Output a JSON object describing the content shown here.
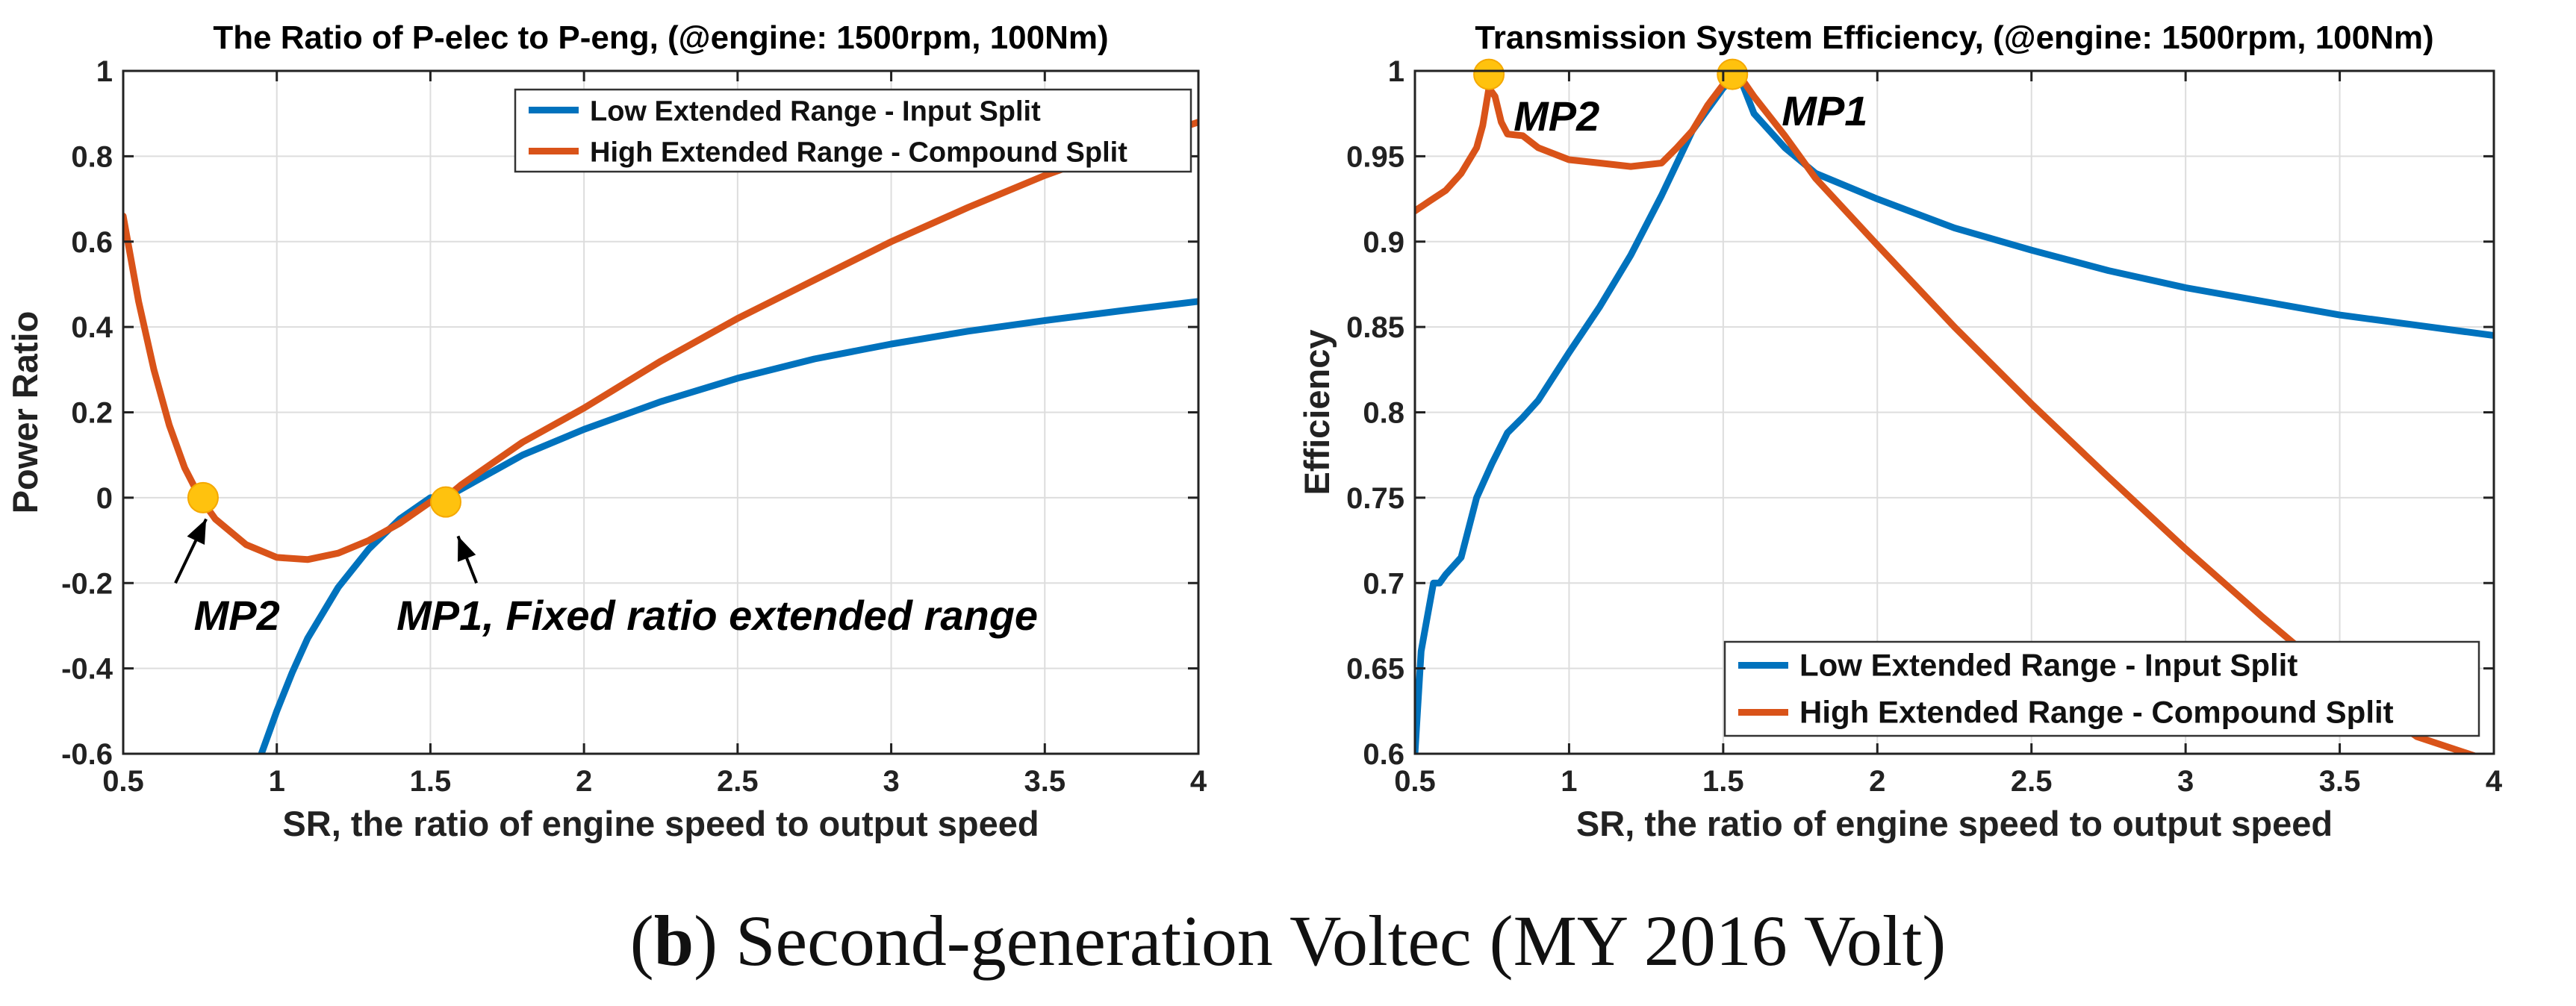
{
  "caption": {
    "open_paren": "(",
    "label": "b",
    "text": ") Second-generation Voltec (MY 2016 Volt)"
  },
  "colors": {
    "input_split": "#0072BD",
    "compound_split": "#D95319",
    "marker": "#FFC20E",
    "grid": "#dddddd",
    "axis": "#222222"
  },
  "chart_data": [
    {
      "type": "line",
      "title": "The Ratio of P-elec to P-eng, (@engine: 1500rpm, 100Nm)",
      "xlabel": "SR, the ratio of engine speed to output speed",
      "ylabel": "Power Ratio",
      "xlim": [
        0.5,
        4
      ],
      "ylim": [
        -0.6,
        1
      ],
      "xticks": [
        0.5,
        1,
        1.5,
        2,
        2.5,
        3,
        3.5,
        4
      ],
      "yticks": [
        -0.6,
        -0.4,
        -0.2,
        0,
        0.2,
        0.4,
        0.6,
        0.8,
        1
      ],
      "xtick_labels": [
        "0.5",
        "1",
        "1.5",
        "2",
        "2.5",
        "3",
        "3.5",
        "4"
      ],
      "ytick_labels": [
        "-0.6",
        "-0.4",
        "-0.2",
        "0",
        "0.2",
        "0.4",
        "0.6",
        "0.8",
        "1"
      ],
      "grid": true,
      "legend_position": "top-right",
      "series": [
        {
          "name": "Low Extended Range - Input Split",
          "color": "#0072BD",
          "x": [
            0.95,
            1.0,
            1.05,
            1.1,
            1.2,
            1.3,
            1.4,
            1.5,
            1.55,
            1.6,
            1.7,
            1.8,
            2.0,
            2.25,
            2.5,
            2.75,
            3.0,
            3.25,
            3.5,
            3.75,
            4.0
          ],
          "y": [
            -0.6,
            -0.5,
            -0.41,
            -0.33,
            -0.21,
            -0.12,
            -0.05,
            0.0,
            0.0,
            0.02,
            0.06,
            0.1,
            0.16,
            0.225,
            0.28,
            0.325,
            0.36,
            0.39,
            0.415,
            0.438,
            0.46
          ]
        },
        {
          "name": "High Extended Range - Compound Split",
          "color": "#D95319",
          "x": [
            0.5,
            0.55,
            0.6,
            0.65,
            0.7,
            0.75,
            0.8,
            0.9,
            1.0,
            1.1,
            1.2,
            1.3,
            1.4,
            1.5,
            1.55,
            1.6,
            1.7,
            1.8,
            2.0,
            2.25,
            2.5,
            2.75,
            3.0,
            3.25,
            3.5,
            3.75,
            4.0
          ],
          "y": [
            0.66,
            0.46,
            0.3,
            0.17,
            0.07,
            0.0,
            -0.05,
            -0.11,
            -0.14,
            -0.145,
            -0.13,
            -0.1,
            -0.06,
            -0.01,
            0.0,
            0.03,
            0.08,
            0.13,
            0.21,
            0.32,
            0.42,
            0.51,
            0.6,
            0.68,
            0.755,
            0.82,
            0.88
          ]
        }
      ],
      "markers": [
        {
          "name": "MP2",
          "x": 0.76,
          "y": 0.0
        },
        {
          "name": "MP1",
          "x": 1.55,
          "y": -0.01
        }
      ],
      "annotations": [
        {
          "text": "MP2",
          "x": 0.73,
          "y": -0.31,
          "arrow_to_x": 0.77,
          "arrow_to_y": -0.05,
          "arrow_from_x": 0.67,
          "arrow_from_y": -0.2
        },
        {
          "text": "MP1, Fixed ratio extended range",
          "x": 1.39,
          "y": -0.31,
          "arrow_to_x": 1.59,
          "arrow_to_y": -0.09,
          "arrow_from_x": 1.65,
          "arrow_from_y": -0.2
        }
      ]
    },
    {
      "type": "line",
      "title": "Transmission System Efficiency, (@engine: 1500rpm, 100Nm)",
      "xlabel": "SR, the ratio of engine speed to output speed",
      "ylabel": "Efficiency",
      "xlim": [
        0.5,
        4
      ],
      "ylim": [
        0.6,
        1
      ],
      "xticks": [
        0.5,
        1,
        1.5,
        2,
        2.5,
        3,
        3.5,
        4
      ],
      "yticks": [
        0.6,
        0.65,
        0.7,
        0.75,
        0.8,
        0.85,
        0.9,
        0.95,
        1
      ],
      "xtick_labels": [
        "0.5",
        "1",
        "1.5",
        "2",
        "2.5",
        "3",
        "3.5",
        "4"
      ],
      "ytick_labels": [
        "0.6",
        "0.65",
        "0.7",
        "0.75",
        "0.8",
        "0.85",
        "0.9",
        "0.95",
        "1"
      ],
      "grid": true,
      "legend_position": "bottom-right",
      "series": [
        {
          "name": "Low Extended Range - Input Split",
          "color": "#0072BD",
          "x": [
            0.5,
            0.52,
            0.54,
            0.56,
            0.58,
            0.6,
            0.65,
            0.7,
            0.75,
            0.8,
            0.85,
            0.9,
            1.0,
            1.1,
            1.2,
            1.3,
            1.4,
            1.5,
            1.55,
            1.6,
            1.7,
            1.8,
            2.0,
            2.25,
            2.5,
            2.75,
            3.0,
            3.25,
            3.5,
            3.75,
            4.0
          ],
          "y": [
            0.6,
            0.66,
            0.68,
            0.7,
            0.7,
            0.705,
            0.715,
            0.75,
            0.77,
            0.788,
            0.797,
            0.807,
            0.835,
            0.862,
            0.892,
            0.927,
            0.965,
            0.99,
            0.998,
            0.975,
            0.955,
            0.94,
            0.925,
            0.908,
            0.895,
            0.883,
            0.873,
            0.865,
            0.857,
            0.851,
            0.845
          ]
        },
        {
          "name": "High Extended Range - Compound Split",
          "color": "#D95319",
          "x": [
            0.5,
            0.55,
            0.6,
            0.65,
            0.7,
            0.72,
            0.74,
            0.76,
            0.78,
            0.8,
            0.85,
            0.9,
            1.0,
            1.1,
            1.2,
            1.3,
            1.35,
            1.4,
            1.45,
            1.5,
            1.55,
            1.6,
            1.7,
            1.8,
            2.0,
            2.25,
            2.5,
            2.75,
            3.0,
            3.25,
            3.5,
            3.75,
            4.0
          ],
          "y": [
            0.918,
            0.924,
            0.93,
            0.94,
            0.955,
            0.968,
            0.99,
            0.985,
            0.97,
            0.963,
            0.962,
            0.955,
            0.948,
            0.946,
            0.944,
            0.946,
            0.955,
            0.965,
            0.98,
            0.992,
            0.998,
            0.985,
            0.962,
            0.937,
            0.898,
            0.85,
            0.805,
            0.762,
            0.72,
            0.68,
            0.642,
            0.61,
            0.595
          ]
        }
      ],
      "markers": [
        {
          "name": "MP2",
          "x": 0.74,
          "y": 0.998
        },
        {
          "name": "MP1",
          "x": 1.53,
          "y": 0.998
        }
      ],
      "annotations": [
        {
          "text": "MP2",
          "x": 0.82,
          "y": 0.965
        },
        {
          "text": "MP1",
          "x": 1.69,
          "y": 0.968
        }
      ]
    }
  ]
}
